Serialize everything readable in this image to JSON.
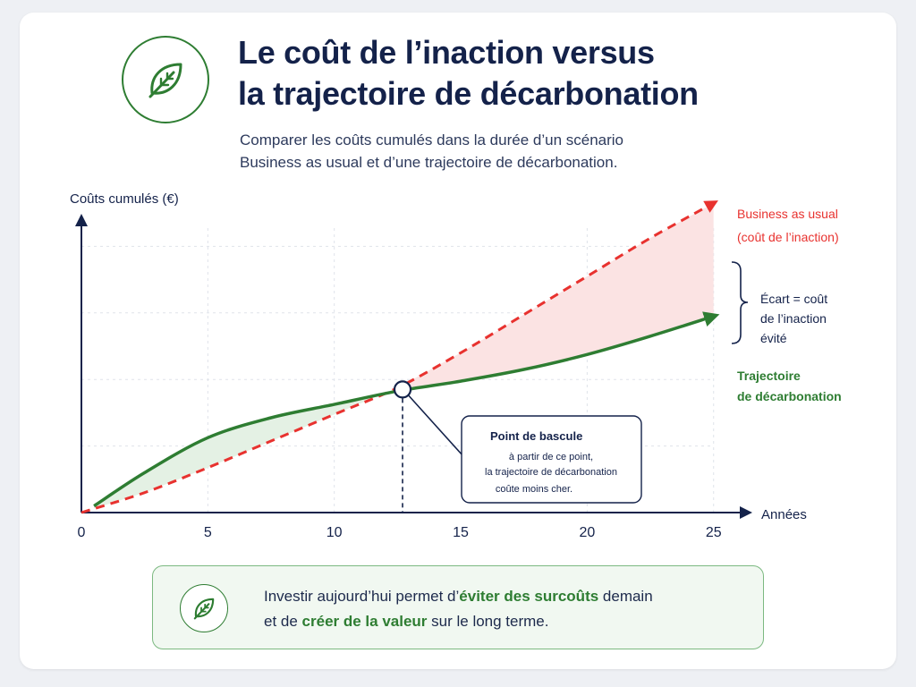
{
  "title": {
    "line1": "Le coût de l’inaction versus",
    "line2": "la trajectoire de décarbonation"
  },
  "subtitle": {
    "line1": "Comparer les coûts cumulés dans la durée d’un scénario",
    "line2": "Business as usual et d’une trajectoire de décarbonation."
  },
  "icons": {
    "header": "leaf-icon",
    "callout": "leaf-icon"
  },
  "colors": {
    "navy": "#14224a",
    "red": "#e8322f",
    "green": "#2e7d32",
    "red_fill": "#fbe3e3",
    "green_fill": "#e4f1e4"
  },
  "chart_data": {
    "type": "line",
    "ylabel": "Coûts cumulés (€)",
    "xlabel": "Années",
    "xlim": [
      0,
      26
    ],
    "ylim": [
      0,
      10
    ],
    "x_ticks": [
      0,
      5,
      10,
      15,
      20,
      25
    ],
    "grid": true,
    "series": [
      {
        "name": "Business as usual",
        "sublabel": "(coût de l’inaction)",
        "style": "dashed",
        "color": "#e8322f",
        "x": [
          0,
          2.5,
          5,
          7.5,
          10,
          12.5,
          15,
          17.5,
          20,
          22.5,
          25
        ],
        "y": [
          0,
          0.6,
          1.35,
          2.15,
          2.95,
          3.75,
          4.8,
          5.95,
          7.1,
          8.25,
          9.3
        ]
      },
      {
        "name": "Trajectoire de décarbonation",
        "style": "solid",
        "color": "#2e7d32",
        "x": [
          0.5,
          2.5,
          5,
          7.5,
          10,
          12.5,
          15,
          17.5,
          20,
          22.5,
          25
        ],
        "y": [
          0.2,
          1.2,
          2.25,
          2.85,
          3.25,
          3.65,
          3.95,
          4.3,
          4.75,
          5.3,
          5.9
        ]
      }
    ],
    "crossover": {
      "x": 12.7,
      "y": 3.7
    },
    "annotations": {
      "bascule": {
        "title": "Point de bascule",
        "lines": [
          "à partir de ce point,",
          "la trajectoire de décarbonation",
          "coûte moins cher."
        ]
      },
      "ecart": [
        "Écart = coût",
        "de l’inaction",
        "évité"
      ]
    }
  },
  "callout": {
    "t1": "Investir aujourd’hui permet d’",
    "b1": "éviter des surcoûts",
    "t2": " demain",
    "t3": "et de ",
    "b2": "créer de la valeur",
    "t4": " sur le long terme."
  }
}
